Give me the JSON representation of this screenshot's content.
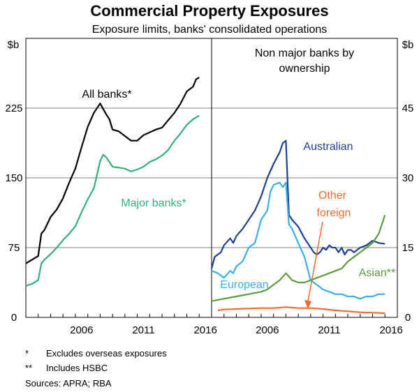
{
  "chart_data": [
    {
      "type": "line",
      "panel": "left",
      "title": "Commercial Property Exposures",
      "subtitle": "Exposure limits, banks' consolidated operations",
      "ylabel": "$b",
      "ylim": [
        0,
        300
      ],
      "yticks": [
        "0",
        "75",
        "150",
        "225"
      ],
      "xlim": [
        2002.0,
        2017.0
      ],
      "xticks": [
        {
          "v": 2006,
          "label": "2006"
        },
        {
          "v": 2011,
          "label": "2011"
        },
        {
          "v": 2016,
          "label": "2016"
        }
      ],
      "series": [
        {
          "name": "All banks*",
          "color": "#000000",
          "x": [
            2002.0,
            2002.5,
            2003.0,
            2003.25,
            2003.5,
            2004.0,
            2004.5,
            2005.0,
            2005.5,
            2006.0,
            2006.5,
            2007.0,
            2007.5,
            2008.0,
            2008.5,
            2008.75,
            2009.0,
            2009.5,
            2010.0,
            2010.5,
            2011.0,
            2011.25,
            2011.5,
            2012.0,
            2012.5,
            2013.0,
            2013.5,
            2014.0,
            2014.5,
            2015.0,
            2015.5,
            2015.75,
            2016.0
          ],
          "y": [
            58,
            62,
            66,
            90,
            94,
            108,
            116,
            128,
            145,
            160,
            183,
            205,
            220,
            230,
            218,
            213,
            202,
            200,
            195,
            190,
            190,
            193,
            196,
            199,
            202,
            204,
            212,
            220,
            230,
            243,
            248,
            256,
            258
          ]
        },
        {
          "name": "Major banks*",
          "color": "#33b07a",
          "x": [
            2002.0,
            2002.5,
            2003.0,
            2003.25,
            2003.5,
            2004.0,
            2004.5,
            2005.0,
            2005.5,
            2006.0,
            2006.5,
            2007.0,
            2007.5,
            2008.0,
            2008.25,
            2008.5,
            2009.0,
            2009.5,
            2010.0,
            2010.5,
            2011.0,
            2011.5,
            2012.0,
            2012.5,
            2013.0,
            2013.5,
            2014.0,
            2014.5,
            2015.0,
            2015.5,
            2016.0
          ],
          "y": [
            34,
            36,
            40,
            58,
            62,
            68,
            75,
            83,
            90,
            98,
            113,
            127,
            139,
            168,
            175,
            172,
            162,
            161,
            160,
            157,
            159,
            162,
            167,
            170,
            174,
            180,
            190,
            198,
            207,
            213,
            217
          ]
        }
      ],
      "labels": [
        {
          "text": "All banks*",
          "series": 0
        },
        {
          "text": "Major banks*",
          "series": 1
        }
      ]
    },
    {
      "type": "line",
      "panel": "right",
      "title": "Non major banks by ownership",
      "ylabel": "$b",
      "ylim": [
        0,
        60
      ],
      "yticks": [
        "0",
        "15",
        "30",
        "45"
      ],
      "xlim": [
        2002.0,
        2017.0
      ],
      "xticks": [
        {
          "v": 2006,
          "label": "2006"
        },
        {
          "v": 2011,
          "label": "2011"
        },
        {
          "v": 2016,
          "label": "2016"
        }
      ],
      "series": [
        {
          "name": "Australian",
          "color": "#1f3f8f",
          "x": [
            2002.0,
            2002.25,
            2002.75,
            2003.0,
            2003.5,
            2003.75,
            2004.0,
            2004.5,
            2005.0,
            2005.5,
            2006.0,
            2006.5,
            2007.0,
            2007.5,
            2007.75,
            2008.0,
            2008.25,
            2008.5,
            2009.0,
            2009.5,
            2010.0,
            2010.25,
            2010.5,
            2010.75,
            2011.0,
            2011.25,
            2011.5,
            2011.75,
            2012.0,
            2012.25,
            2012.5,
            2012.75,
            2013.0,
            2013.25,
            2013.5,
            2013.75,
            2014.0,
            2014.5,
            2015.0,
            2015.5,
            2016.0
          ],
          "y": [
            10.5,
            13,
            14,
            15.5,
            17,
            16,
            17.5,
            19,
            21,
            23,
            26,
            30,
            33,
            35.5,
            37.5,
            38,
            22,
            21,
            19.5,
            17,
            15,
            14,
            13.5,
            14,
            15,
            14.5,
            15.5,
            15,
            15,
            14,
            15,
            13.5,
            14.5,
            14.5,
            14,
            14.5,
            15,
            15.5,
            16.5,
            16,
            15.8
          ]
        },
        {
          "name": "European",
          "color": "#3ab0e2",
          "x": [
            2002.0,
            2002.5,
            2003.0,
            2003.5,
            2003.75,
            2004.0,
            2004.5,
            2005.0,
            2005.5,
            2006.0,
            2006.5,
            2006.75,
            2007.0,
            2007.5,
            2007.75,
            2008.0,
            2008.25,
            2008.5,
            2009.0,
            2009.5,
            2010.0,
            2010.5,
            2011.0,
            2011.5,
            2012.0,
            2012.5,
            2013.0,
            2013.5,
            2014.0,
            2014.5,
            2015.0,
            2015.5,
            2016.0
          ],
          "y": [
            10,
            9.5,
            8.5,
            10,
            9.5,
            11,
            12,
            15,
            16,
            21,
            23,
            27,
            28.5,
            29,
            28,
            29,
            20,
            19,
            16,
            13,
            8,
            7,
            6,
            5.5,
            5,
            5,
            4.5,
            4.5,
            4,
            4.5,
            4.5,
            5,
            5
          ]
        },
        {
          "name": "Asian**",
          "color": "#5b9a3e",
          "x": [
            2002.0,
            2003.0,
            2004.0,
            2005.0,
            2006.0,
            2006.5,
            2007.0,
            2007.5,
            2008.0,
            2008.5,
            2009.0,
            2009.5,
            2010.0,
            2010.5,
            2011.0,
            2011.5,
            2012.0,
            2012.5,
            2013.0,
            2013.5,
            2014.0,
            2014.5,
            2015.0,
            2015.5,
            2015.75,
            2016.0
          ],
          "y": [
            3.5,
            4,
            4.5,
            5,
            5.5,
            6,
            7,
            8,
            9.5,
            8,
            7.5,
            7.5,
            8,
            8.5,
            9,
            9.5,
            10,
            10.5,
            12,
            13,
            14,
            15,
            16,
            18,
            20,
            22
          ]
        },
        {
          "name": "Other foreign",
          "color": "#ef6c2c",
          "x": [
            2002.5,
            2003.0,
            2004.0,
            2005.0,
            2006.0,
            2007.0,
            2008.0,
            2009.0,
            2010.0,
            2011.0,
            2012.0,
            2013.0,
            2014.0,
            2015.0,
            2016.0
          ],
          "y": [
            1.5,
            1.7,
            1.8,
            1.9,
            2.0,
            2.0,
            2.2,
            2.0,
            2.0,
            1.8,
            1.5,
            1.3,
            1.1,
            1.0,
            0.9
          ]
        }
      ],
      "labels": [
        {
          "text": "Australian",
          "series": 0
        },
        {
          "text": "European",
          "series": 1
        },
        {
          "text": "Asian**",
          "series": 2
        },
        {
          "text": "Other",
          "series": 3
        },
        {
          "text": "foreign",
          "series": 3
        }
      ]
    }
  ],
  "notes": [
    {
      "key": "*",
      "text": "Excludes overseas exposures"
    },
    {
      "key": "**",
      "text": "Includes HSBC"
    }
  ],
  "sources": "Sources:  APRA; RBA"
}
